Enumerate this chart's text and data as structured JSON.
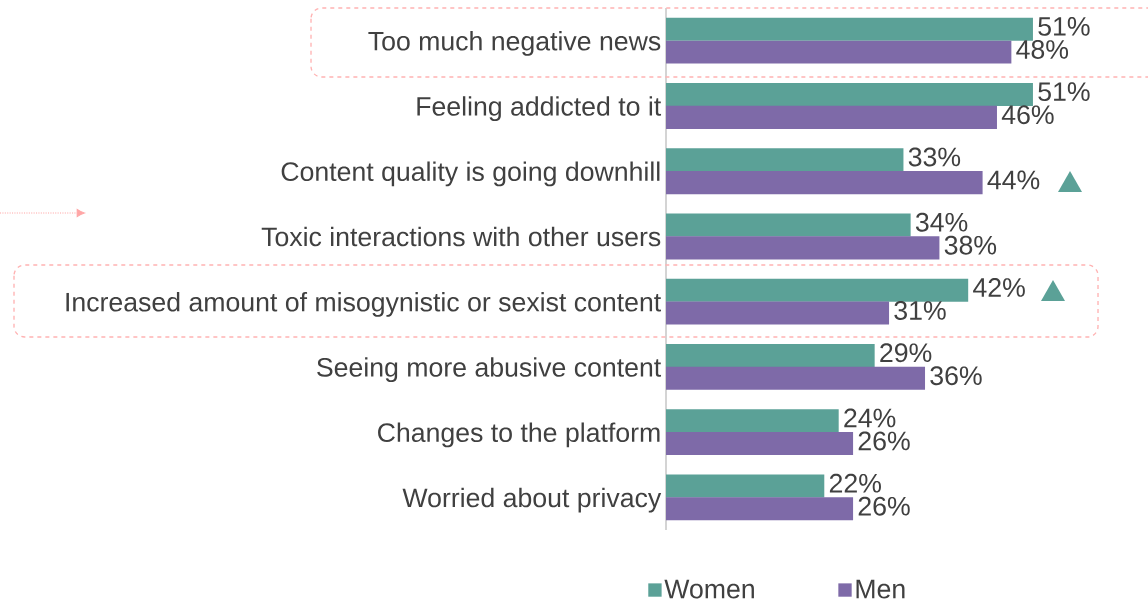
{
  "chart_data": {
    "type": "bar",
    "orientation": "horizontal",
    "legend": "bottom",
    "categories": [
      "Too much negative news",
      "Feeling addicted to it",
      "Content quality is going downhill",
      "Toxic interactions with other users",
      "Increased amount of misogynistic or sexist content",
      "Seeing more abusive content",
      "Changes to the platform",
      "Worried about privacy"
    ],
    "series": [
      {
        "name": "Women",
        "color": "#5ba197",
        "values": [
          51,
          51,
          33,
          34,
          42,
          29,
          24,
          22
        ],
        "value_labels": [
          "51%",
          "51%",
          "33%",
          "34%",
          "42%",
          "29%",
          "24%",
          "22%"
        ]
      },
      {
        "name": "Men",
        "color": "#7e6aa8",
        "values": [
          48,
          46,
          44,
          38,
          31,
          36,
          26,
          26
        ],
        "value_labels": [
          "48%",
          "46%",
          "44%",
          "38%",
          "31%",
          "36%",
          "26%",
          "26%"
        ]
      }
    ]
  }
}
